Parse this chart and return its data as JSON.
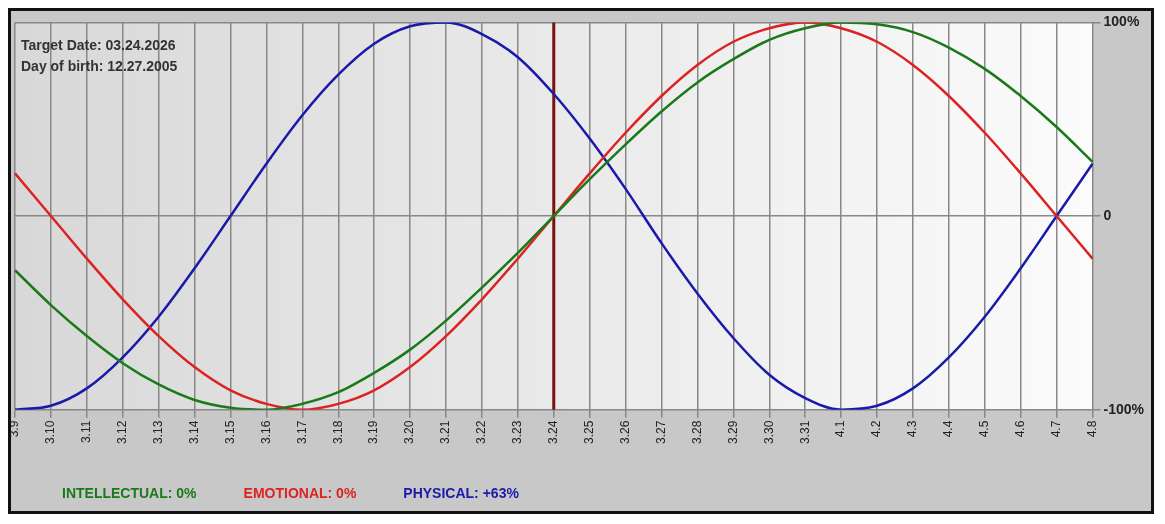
{
  "chart_data": {
    "type": "line",
    "categories": [
      "3.9",
      "3.10",
      "3.11",
      "3.12",
      "3.13",
      "3.14",
      "3.15",
      "3.16",
      "3.17",
      "3.18",
      "3.19",
      "3.20",
      "3.21",
      "3.22",
      "3.23",
      "3.24",
      "3.25",
      "3.26",
      "3.27",
      "3.28",
      "3.29",
      "3.30",
      "3.31",
      "4.1",
      "4.2",
      "4.3",
      "4.4",
      "4.5",
      "4.6",
      "4.7",
      "4.8"
    ],
    "series": [
      {
        "name": "INTELLECTUAL: 0%",
        "color": "#1a7a1a",
        "values": [
          -28,
          -46,
          -62,
          -76,
          -87,
          -95,
          -99,
          -100,
          -97,
          -91,
          -81,
          -69,
          -54,
          -37,
          -19,
          0,
          19,
          37,
          54,
          69,
          81,
          91,
          97,
          100,
          99,
          95,
          87,
          76,
          62,
          46,
          28
        ]
      },
      {
        "name": "EMOTIONAL: 0%",
        "color": "#dd2222",
        "values": [
          22,
          0,
          -22,
          -43,
          -62,
          -78,
          -90,
          -97,
          -100,
          -97,
          -90,
          -78,
          -62,
          -43,
          -22,
          0,
          22,
          43,
          62,
          78,
          90,
          97,
          100,
          97,
          90,
          78,
          62,
          43,
          22,
          0,
          -22
        ]
      },
      {
        "name": "PHYSICAL: +63%",
        "color": "#1a1aaa",
        "values": [
          -100,
          -98,
          -89,
          -73,
          -52,
          -27,
          0,
          27,
          52,
          73,
          89,
          98,
          100,
          94,
          82,
          63,
          40,
          14,
          -14,
          -40,
          -63,
          -82,
          -94,
          -100,
          -98,
          -89,
          -73,
          -52,
          -27,
          0,
          27
        ]
      }
    ],
    "ylim": [
      -100,
      100
    ],
    "yticks": [
      {
        "value": -100,
        "label": "-100%"
      },
      {
        "value": 0,
        "label": "0"
      },
      {
        "value": 100,
        "label": "100%"
      }
    ],
    "ref_lines": [
      {
        "axis": "x",
        "value": "3.24",
        "color": "#7a1010"
      }
    ],
    "annotations": [
      "Target Date: 03.24.2026",
      "Day of birth: 12.27.2005"
    ],
    "grid": true,
    "legend": "bottom",
    "marker": "none",
    "line_style": "solid"
  }
}
